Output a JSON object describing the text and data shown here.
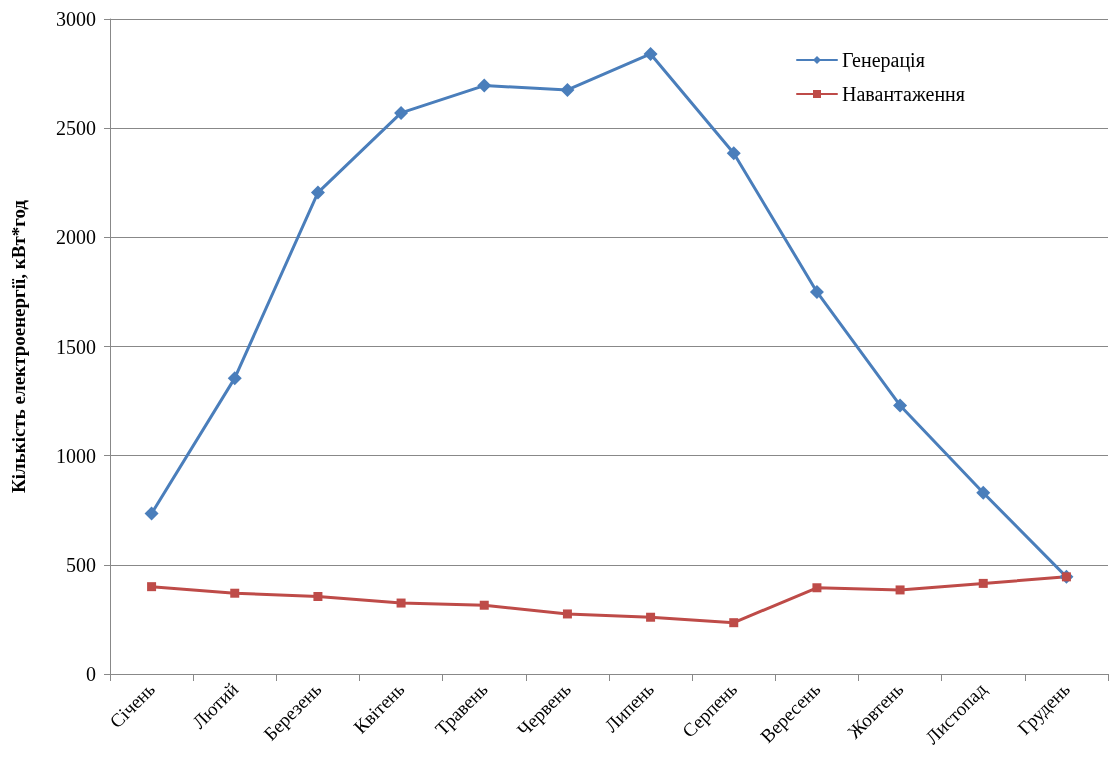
{
  "chart_data": {
    "type": "line",
    "ylabel": "Кількість електроенергії, кВт*год",
    "categories": [
      "Січень",
      "Лютий",
      "Березень",
      "Квітень",
      "Травень",
      "Червень",
      "Липень",
      "Серпень",
      "Вересень",
      "Жовтень",
      "Листопад",
      "Грудень"
    ],
    "series": [
      {
        "name": "Генерація",
        "color": "#4a7ebb",
        "marker": "diamond",
        "values": [
          735,
          1355,
          2205,
          2570,
          2695,
          2675,
          2840,
          2385,
          1750,
          1230,
          830,
          445
        ]
      },
      {
        "name": "Навантаження",
        "color": "#be4b48",
        "marker": "square",
        "values": [
          400,
          370,
          355,
          325,
          315,
          275,
          260,
          235,
          395,
          385,
          415,
          445
        ]
      }
    ],
    "ylim": [
      0,
      3000
    ],
    "yticks": [
      0,
      500,
      1000,
      1500,
      2000,
      2500,
      3000
    ],
    "grid": "y",
    "legend": "top right",
    "line_style": "solid"
  }
}
